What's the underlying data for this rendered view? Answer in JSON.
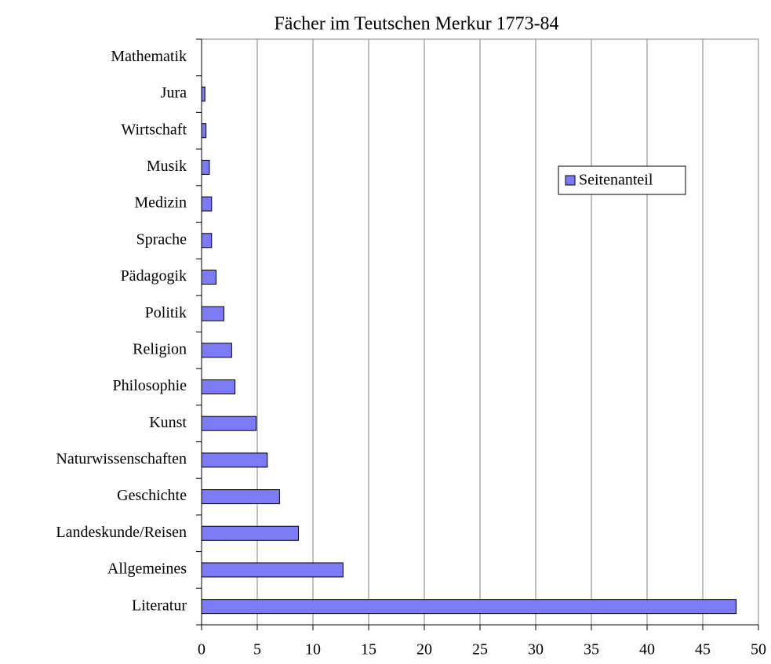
{
  "chart_data": {
    "type": "bar",
    "orientation": "horizontal",
    "title": "Fächer im Teutschen Merkur 1773-84",
    "categories": [
      "Mathematik",
      "Jura",
      "Wirtschaft",
      "Musik",
      "Medizin",
      "Sprache",
      "Pädagogik",
      "Politik",
      "Religion",
      "Philosophie",
      "Kunst",
      "Naturwissenschaften",
      "Geschichte",
      "Landeskunde/Reisen",
      "Allgemeines",
      "Literatur"
    ],
    "series": [
      {
        "name": "Seitenanteil",
        "color": "#7b7bf7",
        "values": [
          0,
          0.3,
          0.4,
          0.7,
          0.9,
          0.9,
          1.3,
          2.0,
          2.7,
          3.0,
          4.9,
          5.9,
          7.0,
          8.7,
          12.7,
          48.0
        ]
      }
    ],
    "xlim": [
      0,
      50
    ],
    "xticks": [
      0,
      5,
      10,
      15,
      20,
      25,
      30,
      35,
      40,
      45,
      50
    ],
    "grid": true,
    "legend": "upper right"
  }
}
